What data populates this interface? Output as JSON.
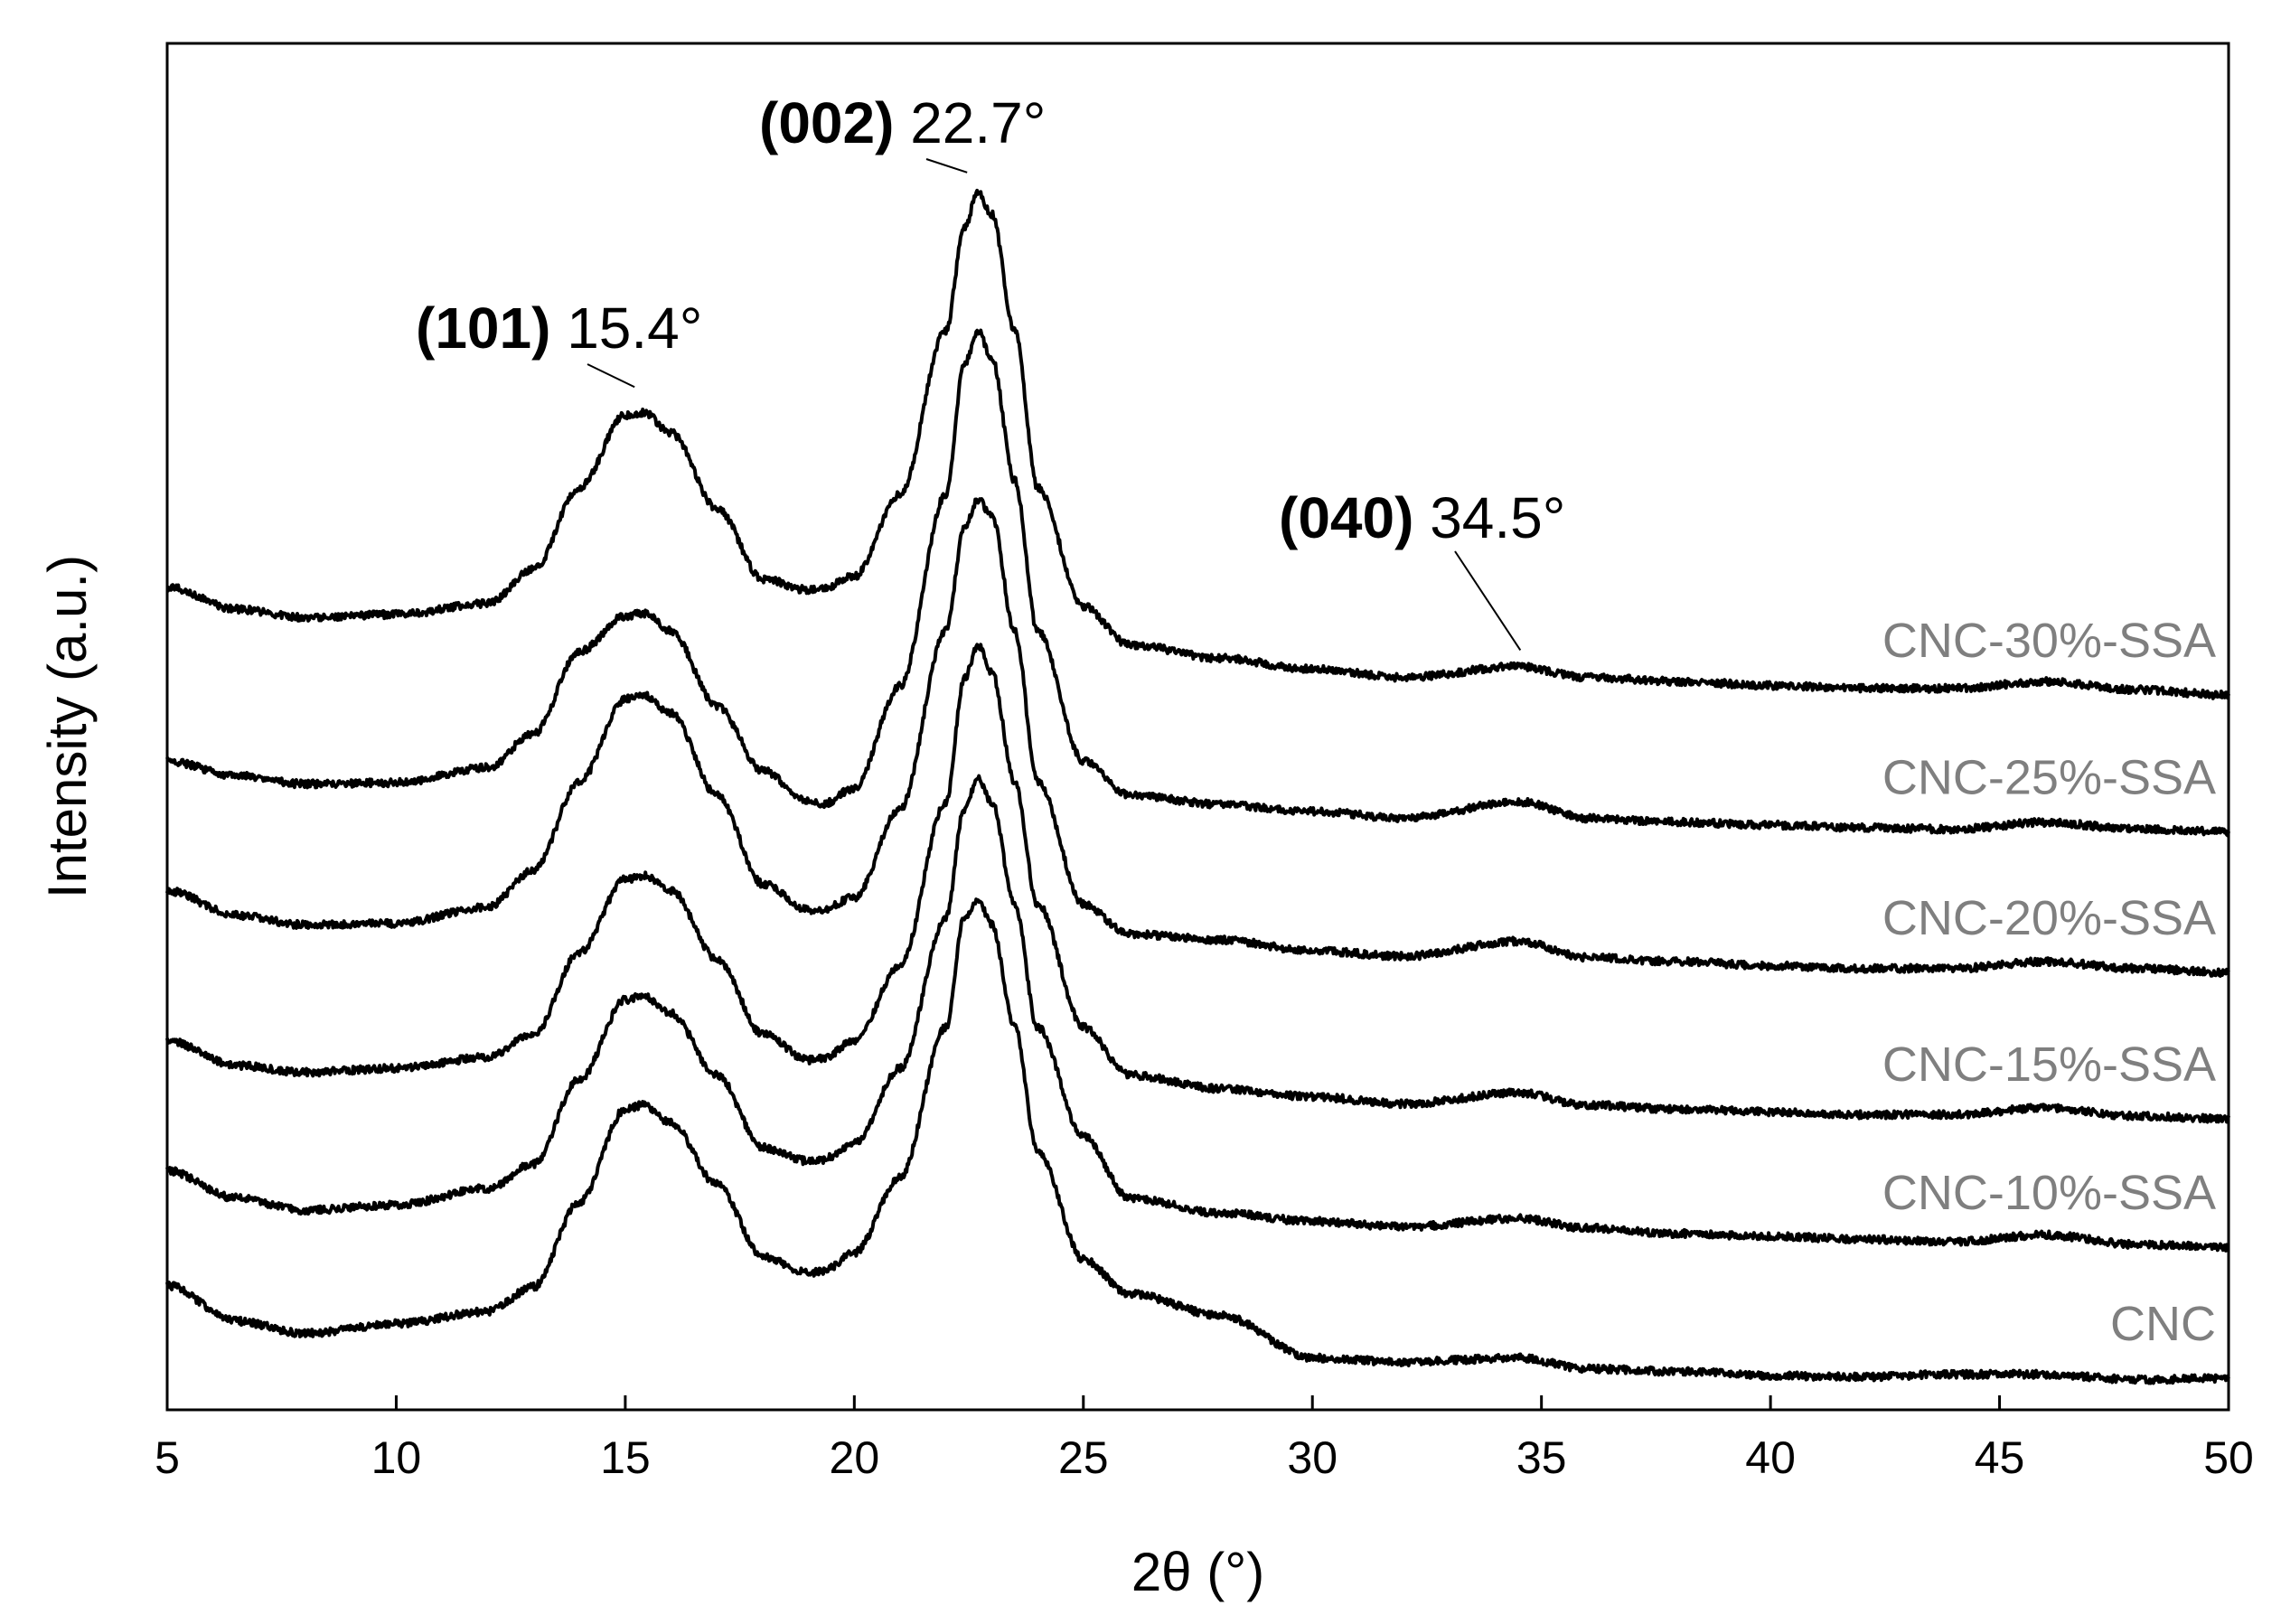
{
  "chart_data": {
    "type": "line",
    "title": "",
    "xlabel": "2θ (°)",
    "ylabel": "Intensity (a.u.)",
    "xlim": [
      5,
      50
    ],
    "ylim": [
      0,
      100
    ],
    "x_ticks": [
      "5",
      "10",
      "15",
      "20",
      "25",
      "30",
      "35",
      "40",
      "45",
      "50"
    ],
    "y_ticks": [],
    "grid": false,
    "legend": "inline-right",
    "series": [
      {
        "name": "CNC",
        "x": [
          5,
          6.5,
          8,
          10,
          12,
          13,
          14,
          15,
          15.4,
          16,
          17,
          18,
          19,
          19.3,
          20,
          21,
          22,
          22.4,
          22.7,
          23,
          23.5,
          24,
          25,
          26,
          28,
          30,
          32,
          34.5,
          36,
          38,
          40,
          42,
          44,
          46,
          48,
          50
        ],
        "values": [
          9.1,
          6.5,
          5.6,
          6.3,
          7.2,
          9.0,
          15.2,
          22.0,
          22.3,
          21.0,
          16.5,
          11.2,
          10.0,
          10.1,
          11.5,
          17.0,
          28.0,
          36.0,
          37.4,
          35.5,
          28.0,
          19.0,
          11.0,
          8.5,
          6.9,
          3.8,
          3.5,
          3.8,
          3.0,
          2.8,
          2.5,
          2.4,
          2.6,
          2.6,
          2.2,
          2.3
        ]
      },
      {
        "name": "CNC-10%-SSA",
        "x": [
          5,
          6.5,
          8,
          10,
          12,
          13,
          14,
          15,
          15.4,
          16,
          17,
          18,
          19,
          19.3,
          20,
          21,
          22,
          22.4,
          22.7,
          23,
          23.5,
          24,
          25,
          26,
          28,
          30,
          32,
          34.5,
          36,
          38,
          40,
          42,
          44,
          46,
          48,
          50
        ],
        "values": [
          17.5,
          15.5,
          14.6,
          15.0,
          16.2,
          18.0,
          24.2,
          30.0,
          30.3,
          29.0,
          24.5,
          19.2,
          18.2,
          18.3,
          19.5,
          25.0,
          36.0,
          44.0,
          46.2,
          44.5,
          37.0,
          28.0,
          20.0,
          15.5,
          14.4,
          13.8,
          13.4,
          14.0,
          13.3,
          12.9,
          12.7,
          12.5,
          12.3,
          12.8,
          12.1,
          11.9
        ]
      },
      {
        "name": "CNC-15%-SSA",
        "x": [
          5,
          6.5,
          8,
          10,
          12,
          13,
          14,
          15,
          15.4,
          16,
          17,
          18,
          19,
          19.3,
          20,
          21,
          22,
          22.4,
          22.7,
          23,
          23.5,
          24,
          25,
          26,
          28,
          30,
          32,
          34.5,
          36,
          38,
          40,
          42,
          44,
          46,
          48,
          50
        ],
        "values": [
          27.0,
          25.2,
          24.7,
          25.0,
          25.8,
          27.5,
          33.5,
          38.8,
          39.1,
          38.0,
          33.0,
          27.5,
          25.6,
          25.7,
          27.0,
          32.5,
          44.5,
          53.5,
          56.0,
          54.0,
          46.0,
          37.0,
          28.0,
          24.5,
          23.5,
          22.9,
          22.4,
          23.2,
          22.3,
          22.0,
          21.8,
          21.6,
          21.6,
          22.1,
          21.5,
          21.3
        ]
      },
      {
        "name": "CNC-20%-SSA",
        "x": [
          5,
          6.5,
          8,
          10,
          12,
          13,
          14,
          15,
          15.4,
          16,
          17,
          18,
          19,
          19.3,
          20,
          21,
          22,
          22.4,
          22.7,
          23,
          23.5,
          24,
          25,
          26,
          28,
          30,
          32,
          34.5,
          36,
          38,
          40,
          42,
          44,
          46,
          48,
          50
        ],
        "values": [
          38.0,
          36.2,
          35.5,
          35.6,
          36.8,
          39.5,
          46.0,
          52.0,
          52.3,
          51.0,
          45.0,
          38.5,
          36.6,
          36.6,
          37.5,
          44.0,
          57.0,
          64.5,
          66.6,
          65.5,
          57.0,
          46.0,
          37.0,
          34.8,
          34.4,
          33.6,
          33.2,
          34.3,
          33.1,
          32.8,
          32.5,
          32.3,
          32.3,
          32.8,
          32.3,
          32.0
        ]
      },
      {
        "name": "CNC-25%-SSA",
        "x": [
          5,
          6.5,
          8,
          10,
          12,
          13,
          14,
          15,
          15.4,
          16,
          17,
          18,
          19,
          19.3,
          20,
          21,
          22,
          22.4,
          22.7,
          23,
          23.5,
          24,
          25,
          26,
          28,
          30,
          32,
          34.5,
          36,
          38,
          40,
          42,
          44,
          46,
          48,
          50
        ],
        "values": [
          47.5,
          46.4,
          45.8,
          45.9,
          47.0,
          49.5,
          55.5,
          58.1,
          58.3,
          57.0,
          51.5,
          46.8,
          44.5,
          44.3,
          45.5,
          53.0,
          67.0,
          76.5,
          79.0,
          77.0,
          68.0,
          57.0,
          47.5,
          45.0,
          44.3,
          43.8,
          43.3,
          44.5,
          43.3,
          43.0,
          42.8,
          42.6,
          42.5,
          43.0,
          42.5,
          42.3
        ]
      },
      {
        "name": "CNC-30%-SSA",
        "x": [
          5,
          6.5,
          8,
          10,
          12,
          13,
          14,
          15,
          15.4,
          16,
          17,
          18,
          19,
          19.3,
          20,
          21,
          22,
          22.4,
          22.7,
          23,
          23.5,
          24,
          25,
          26,
          28,
          30,
          32,
          34.5,
          36,
          38,
          40,
          42,
          44,
          46,
          48,
          50
        ],
        "values": [
          60.2,
          58.6,
          58.0,
          58.2,
          59.0,
          61.5,
          67.5,
          72.8,
          73.0,
          71.5,
          66.0,
          60.8,
          60.0,
          60.1,
          61.0,
          67.0,
          79.0,
          86.5,
          89.1,
          87.5,
          79.0,
          67.5,
          58.8,
          56.0,
          55.0,
          54.2,
          53.6,
          54.4,
          53.6,
          53.3,
          53.0,
          52.8,
          52.8,
          53.3,
          52.7,
          52.3
        ]
      }
    ],
    "annotations": [
      {
        "miller": "(101)",
        "angle": "15.4°",
        "x": 15.4,
        "y": 73.0,
        "series": "CNC-30%-SSA"
      },
      {
        "miller": "(002)",
        "angle": "22.7°",
        "x": 22.7,
        "y": 89.1,
        "series": "CNC-30%-SSA"
      },
      {
        "miller": "(040)",
        "angle": "34.5°",
        "x": 34.5,
        "y": 54.4,
        "series": "CNC-30%-SSA"
      }
    ]
  }
}
